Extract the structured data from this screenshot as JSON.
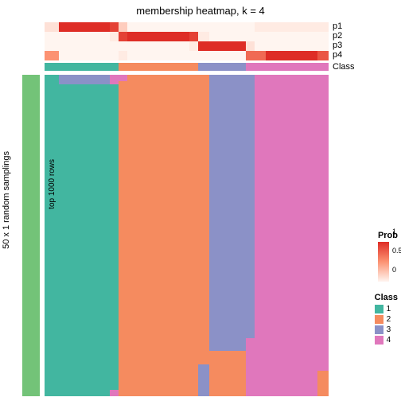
{
  "title": "membership heatmap, k = 4",
  "row_labels": [
    "p1",
    "p2",
    "p3",
    "p4",
    "Class"
  ],
  "left_outer_label": "50 x 1 random samplings",
  "left_inner_label": "top 1000 rows",
  "sampling_bar_color": "#73c378",
  "white_gap_color": "#ffffff",
  "class_colors": {
    "1": "#42b6a0",
    "2": "#f58b5f",
    "3": "#8b91c7",
    "4": "#e077bc"
  },
  "prob_colorscale": {
    "low": "#fff5f0",
    "mid": "#fc9272",
    "high": "#de2d26"
  },
  "columns": [
    {
      "class": 1,
      "width": 5,
      "p": [
        0.1,
        0.0,
        0.0,
        0.5
      ],
      "main": "teal"
    },
    {
      "class": 1,
      "width": 18,
      "p": [
        1.0,
        0.0,
        0.0,
        0.0
      ],
      "main": "teal",
      "top_overlay": {
        "color": "#8b91c7",
        "h": 3
      }
    },
    {
      "class": 1,
      "width": 3,
      "p": [
        0.9,
        0.05,
        0.0,
        0.0
      ],
      "main": "teal",
      "top_overlay": {
        "color": "#e077bc",
        "h": 3
      },
      "bot_overlay": {
        "color": "#e077bc",
        "h": 2
      }
    },
    {
      "class": 2,
      "width": 3,
      "p": [
        0.2,
        0.9,
        0.0,
        0.05
      ],
      "main": "coral",
      "top_overlay": {
        "color": "#e077bc",
        "h": 2
      }
    },
    {
      "class": 2,
      "width": 22,
      "p": [
        0.0,
        1.0,
        0.0,
        0.0
      ],
      "main": "coral"
    },
    {
      "class": 2,
      "width": 3,
      "p": [
        0.0,
        0.9,
        0.05,
        0.0
      ],
      "main": "coral"
    },
    {
      "class": 3,
      "width": 4,
      "p": [
        0.0,
        0.05,
        1.0,
        0.0
      ],
      "main": "coral",
      "bot_interrupt": {
        "from": 90,
        "color": "#8b91c7"
      }
    },
    {
      "class": 3,
      "width": 13,
      "p": [
        0.0,
        0.0,
        1.0,
        0.0
      ],
      "main": "periwinkle",
      "top_overlay": {
        "color": "#f58b5f",
        "h": 0
      },
      "bot_interrupt": {
        "from": 86,
        "color": "#f58b5f"
      }
    },
    {
      "class": 4,
      "width": 3,
      "p": [
        0.0,
        0.0,
        0.1,
        0.7
      ],
      "main": "periwinkle",
      "bot_interrupt": {
        "from": 82,
        "color": "#e077bc"
      }
    },
    {
      "class": 4,
      "width": 4,
      "p": [
        0.05,
        0.0,
        0.0,
        0.7
      ],
      "main": "pink"
    },
    {
      "class": 4,
      "width": 18,
      "p": [
        0.05,
        0.0,
        0.0,
        1.0
      ],
      "main": "pink"
    },
    {
      "class": 4,
      "width": 4,
      "p": [
        0.05,
        0.0,
        0.0,
        0.8
      ],
      "main": "pink",
      "bot_interrupt": {
        "from": 92,
        "color": "#f58b5f"
      }
    }
  ],
  "main_color_map": {
    "teal": "#42b6a0",
    "coral": "#f58b5f",
    "periwinkle": "#8b91c7",
    "pink": "#e077bc"
  },
  "legend_prob": {
    "title": "Prob",
    "ticks": [
      "1",
      "0.5",
      "0"
    ]
  },
  "legend_class": {
    "title": "Class",
    "items": [
      [
        "1",
        "#42b6a0"
      ],
      [
        "2",
        "#f58b5f"
      ],
      [
        "3",
        "#8b91c7"
      ],
      [
        "4",
        "#e077bc"
      ]
    ]
  }
}
